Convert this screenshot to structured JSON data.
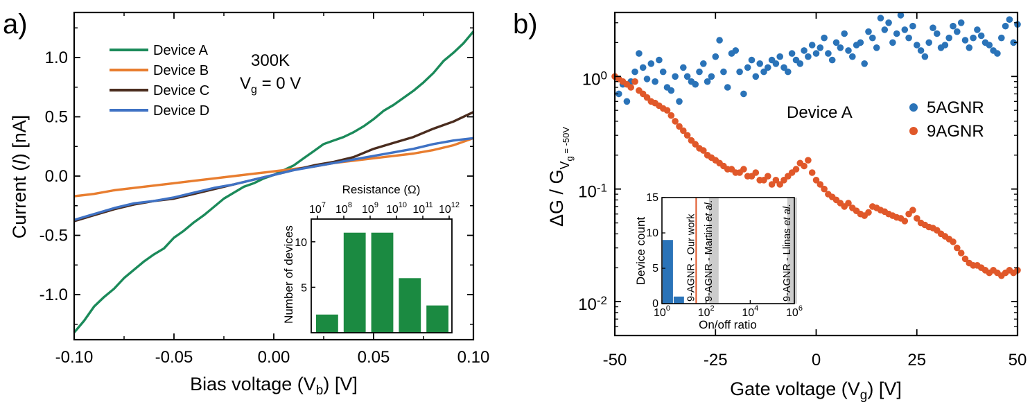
{
  "chart_data": [
    {
      "id": "a",
      "panel_label": "a)",
      "type": "line",
      "xlabel": "Bias voltage (V",
      "xlabel_sub": "b",
      "xlabel_end": ") [V]",
      "ylabel_pre": "Current (",
      "ylabel_var": "I",
      "ylabel_post": ") [nA]",
      "xlim": [
        -0.1,
        0.1
      ],
      "ylim": [
        -1.38,
        1.38
      ],
      "xticks": [
        -0.1,
        -0.05,
        0.0,
        0.05,
        0.1
      ],
      "xtick_labels": [
        "-0.10",
        "-0.05",
        "0.00",
        "0.05",
        "0.10"
      ],
      "yticks": [
        -1.0,
        -0.5,
        0.0,
        0.5,
        1.0
      ],
      "ytick_labels": [
        "-1.0",
        "-0.5",
        "0.0",
        "0.5",
        "1.0"
      ],
      "annotation_temp": "300K",
      "annotation_vg_pre": "V",
      "annotation_vg_sub": "g",
      "annotation_vg_post": " = 0 V",
      "series": [
        {
          "name": "Device A",
          "color": "#1b8a5a",
          "x": [
            -0.1,
            -0.095,
            -0.09,
            -0.085,
            -0.08,
            -0.075,
            -0.07,
            -0.065,
            -0.06,
            -0.055,
            -0.05,
            -0.045,
            -0.04,
            -0.035,
            -0.03,
            -0.025,
            -0.02,
            -0.015,
            -0.01,
            -0.005,
            0.0,
            0.005,
            0.01,
            0.015,
            0.02,
            0.025,
            0.03,
            0.035,
            0.04,
            0.045,
            0.05,
            0.055,
            0.06,
            0.065,
            0.07,
            0.075,
            0.08,
            0.085,
            0.09,
            0.095,
            0.1
          ],
          "y": [
            -1.32,
            -1.22,
            -1.1,
            -1.02,
            -0.95,
            -0.86,
            -0.79,
            -0.72,
            -0.66,
            -0.61,
            -0.52,
            -0.46,
            -0.39,
            -0.33,
            -0.26,
            -0.19,
            -0.14,
            -0.09,
            -0.06,
            -0.02,
            0.01,
            0.05,
            0.09,
            0.15,
            0.21,
            0.27,
            0.3,
            0.33,
            0.37,
            0.42,
            0.48,
            0.55,
            0.6,
            0.66,
            0.72,
            0.79,
            0.87,
            0.97,
            1.04,
            1.12,
            1.22
          ]
        },
        {
          "name": "Device B",
          "color": "#e87d2f",
          "x": [
            -0.1,
            -0.09,
            -0.08,
            -0.07,
            -0.06,
            -0.05,
            -0.04,
            -0.03,
            -0.02,
            -0.01,
            0.0,
            0.01,
            0.02,
            0.03,
            0.04,
            0.05,
            0.06,
            0.07,
            0.08,
            0.09,
            0.1
          ],
          "y": [
            -0.17,
            -0.15,
            -0.12,
            -0.1,
            -0.08,
            -0.06,
            -0.04,
            -0.02,
            0.0,
            0.02,
            0.04,
            0.06,
            0.08,
            0.11,
            0.13,
            0.15,
            0.17,
            0.19,
            0.22,
            0.26,
            0.32
          ]
        },
        {
          "name": "Device C",
          "color": "#4a2c1e",
          "x": [
            -0.1,
            -0.09,
            -0.08,
            -0.07,
            -0.06,
            -0.05,
            -0.04,
            -0.03,
            -0.02,
            -0.01,
            0.0,
            0.01,
            0.02,
            0.03,
            0.04,
            0.05,
            0.06,
            0.07,
            0.08,
            0.09,
            0.1
          ],
          "y": [
            -0.38,
            -0.33,
            -0.28,
            -0.24,
            -0.21,
            -0.19,
            -0.15,
            -0.11,
            -0.07,
            -0.03,
            0.01,
            0.05,
            0.09,
            0.12,
            0.16,
            0.23,
            0.28,
            0.33,
            0.4,
            0.46,
            0.54
          ]
        },
        {
          "name": "Device D",
          "color": "#3f72c4",
          "x": [
            -0.1,
            -0.09,
            -0.08,
            -0.07,
            -0.06,
            -0.05,
            -0.04,
            -0.03,
            -0.02,
            -0.01,
            0.0,
            0.01,
            0.02,
            0.03,
            0.04,
            0.05,
            0.06,
            0.07,
            0.08,
            0.09,
            0.1
          ],
          "y": [
            -0.37,
            -0.32,
            -0.27,
            -0.23,
            -0.21,
            -0.18,
            -0.14,
            -0.1,
            -0.07,
            -0.03,
            0.01,
            0.05,
            0.08,
            0.11,
            0.14,
            0.17,
            0.2,
            0.23,
            0.27,
            0.3,
            0.32
          ]
        }
      ]
    },
    {
      "id": "a_inset",
      "type": "bar",
      "title": "Resistance (Ω)",
      "ylabel": "Number of devices",
      "top_ticks": [
        "10",
        "10",
        "10",
        "10",
        "10",
        "10"
      ],
      "top_tick_exps": [
        "7",
        "8",
        "9",
        "10",
        "11",
        "12"
      ],
      "yticks": [
        5,
        10
      ],
      "ytick_labels": [
        "5",
        "10"
      ],
      "ylim": [
        0,
        12.5
      ],
      "color": "#1b8a41",
      "categories": [
        "10^7–10^8",
        "10^8–10^9",
        "10^9–10^10",
        "10^10–10^11",
        "10^11–10^12"
      ],
      "values": [
        2,
        11,
        11,
        6,
        3
      ]
    },
    {
      "id": "b",
      "panel_label": "b)",
      "type": "scatter",
      "xlabel": "Gate voltage (V",
      "xlabel_sub": "g",
      "xlabel_end": ") [V]",
      "ylabel_main": "ΔG / G",
      "ylabel_sub1": "V",
      "ylabel_sub2": "g",
      "ylabel_sub3": " = -50V",
      "yscale": "log",
      "xlim": [
        -50,
        50
      ],
      "ylim": [
        0.005,
        3.7
      ],
      "xticks": [
        -50,
        -25,
        0,
        25,
        50
      ],
      "xtick_labels": [
        "-50",
        "-25",
        "0",
        "25",
        "50"
      ],
      "ytick_base": [
        "10",
        "10",
        "10"
      ],
      "ytick_exps": [
        "0",
        "-1",
        "-2"
      ],
      "annotation": "Device A",
      "series": [
        {
          "name": "5AGNR",
          "color": "#2a73b8",
          "x": [
            -49,
            -48,
            -47,
            -46,
            -45,
            -44,
            -43,
            -42,
            -41,
            -40,
            -39,
            -38,
            -37,
            -36,
            -35,
            -34,
            -33,
            -32,
            -31,
            -30,
            -29,
            -28,
            -27,
            -26,
            -25,
            -24,
            -23,
            -22,
            -21,
            -20,
            -19,
            -18,
            -17,
            -16,
            -15,
            -14,
            -13,
            -12,
            -11,
            -10,
            -9,
            -8,
            -7,
            -6,
            -5,
            -4,
            -3,
            -2,
            -1,
            0,
            1,
            2,
            3,
            4,
            5,
            6,
            7,
            8,
            9,
            10,
            11,
            12,
            13,
            14,
            15,
            16,
            17,
            18,
            19,
            20,
            21,
            22,
            23,
            24,
            25,
            26,
            27,
            28,
            29,
            30,
            31,
            32,
            33,
            34,
            35,
            36,
            37,
            38,
            39,
            40,
            41,
            42,
            43,
            44,
            45,
            46,
            47,
            48,
            49,
            50
          ],
          "y": [
            0.7,
            0.85,
            0.6,
            0.9,
            1.1,
            1.6,
            1.2,
            0.95,
            1.3,
            0.9,
            1.4,
            1.1,
            0.8,
            0.75,
            1.0,
            0.6,
            1.2,
            1.0,
            0.9,
            0.85,
            1.1,
            1.3,
            0.9,
            1.0,
            1.5,
            2.1,
            1.1,
            0.8,
            1.6,
            1.7,
            1.1,
            0.7,
            1.2,
            1.4,
            1.0,
            1.3,
            1.1,
            1.2,
            1.4,
            1.3,
            1.5,
            1.2,
            1.1,
            1.6,
            1.4,
            1.3,
            1.7,
            1.5,
            1.9,
            1.6,
            1.8,
            2.2,
            1.6,
            1.4,
            2.0,
            1.8,
            2.4,
            1.7,
            1.5,
            1.9,
            2.0,
            1.3,
            2.5,
            2.2,
            1.8,
            3.3,
            2.6,
            3.0,
            2.0,
            2.4,
            3.5,
            2.6,
            2.2,
            2.8,
            1.9,
            1.7,
            1.5,
            2.0,
            2.7,
            2.4,
            1.8,
            1.9,
            2.2,
            2.8,
            2.5,
            3.0,
            2.1,
            1.8,
            2.2,
            2.6,
            2.3,
            2.0,
            1.9,
            1.7,
            1.6,
            2.2,
            2.8,
            3.2,
            2.0,
            2.9
          ]
        },
        {
          "name": "9AGNR",
          "color": "#e0582a",
          "x": [
            -50,
            -49,
            -48,
            -47,
            -46,
            -45,
            -44,
            -43,
            -42,
            -41,
            -40,
            -39,
            -38,
            -37,
            -36,
            -35,
            -34,
            -33,
            -32,
            -31,
            -30,
            -29,
            -28,
            -27,
            -26,
            -25,
            -24,
            -23,
            -22,
            -21,
            -20,
            -19,
            -18,
            -17,
            -16,
            -15,
            -14,
            -13,
            -12,
            -11,
            -10,
            -9,
            -8,
            -7,
            -6,
            -5,
            -4,
            -3,
            -2,
            -1,
            0,
            1,
            2,
            3,
            4,
            5,
            6,
            7,
            8,
            9,
            10,
            11,
            12,
            13,
            14,
            15,
            16,
            17,
            18,
            19,
            20,
            21,
            22,
            23,
            24,
            25,
            26,
            27,
            28,
            29,
            30,
            31,
            32,
            33,
            34,
            35,
            36,
            37,
            38,
            39,
            40,
            41,
            42,
            43,
            44,
            45,
            46,
            47,
            48,
            49,
            50
          ],
          "y": [
            1.0,
            0.95,
            0.9,
            0.85,
            0.8,
            0.9,
            0.75,
            0.7,
            0.65,
            0.6,
            0.58,
            0.55,
            0.52,
            0.5,
            0.45,
            0.4,
            0.36,
            0.33,
            0.3,
            0.27,
            0.25,
            0.23,
            0.22,
            0.2,
            0.19,
            0.18,
            0.17,
            0.16,
            0.15,
            0.15,
            0.14,
            0.14,
            0.15,
            0.13,
            0.13,
            0.14,
            0.12,
            0.12,
            0.13,
            0.11,
            0.12,
            0.11,
            0.12,
            0.13,
            0.14,
            0.15,
            0.17,
            0.16,
            0.18,
            0.14,
            0.12,
            0.11,
            0.1,
            0.09,
            0.085,
            0.08,
            0.075,
            0.07,
            0.075,
            0.068,
            0.064,
            0.06,
            0.058,
            0.062,
            0.07,
            0.068,
            0.065,
            0.063,
            0.06,
            0.058,
            0.056,
            0.055,
            0.052,
            0.06,
            0.065,
            0.055,
            0.05,
            0.048,
            0.046,
            0.045,
            0.043,
            0.04,
            0.038,
            0.036,
            0.034,
            0.03,
            0.027,
            0.024,
            0.022,
            0.021,
            0.021,
            0.02,
            0.019,
            0.018,
            0.019,
            0.018,
            0.017,
            0.018,
            0.019,
            0.018,
            0.019
          ]
        }
      ]
    },
    {
      "id": "b_inset",
      "type": "bar",
      "xlabel": "On/off ratio",
      "ylabel": "Device count",
      "xscale": "log",
      "xtick_base": [
        "10",
        "10",
        "10",
        "10"
      ],
      "xtick_exps": [
        "0",
        "2",
        "4",
        "6"
      ],
      "yticks": [
        0,
        5,
        10,
        15
      ],
      "ytick_labels": [
        "0",
        "5",
        "10",
        "15"
      ],
      "ylim": [
        0,
        15
      ],
      "color": "#2a73b8",
      "bins_log10": [
        [
          0,
          0.5
        ],
        [
          0.5,
          1
        ]
      ],
      "values": [
        9,
        1
      ],
      "markers": [
        {
          "label": "9-AGNR - Our work",
          "at_log10": 1.55,
          "color": "#e0582a"
        },
        {
          "label_pre": "9-AGNR - Martini ",
          "label_it": "et al.",
          "at_log10": 2.35,
          "color": "#cccccc"
        },
        {
          "label_pre": "9-AGNR - Llinas ",
          "label_it": "et al.",
          "at_log10": 5.9,
          "color": "#cccccc"
        }
      ]
    }
  ]
}
